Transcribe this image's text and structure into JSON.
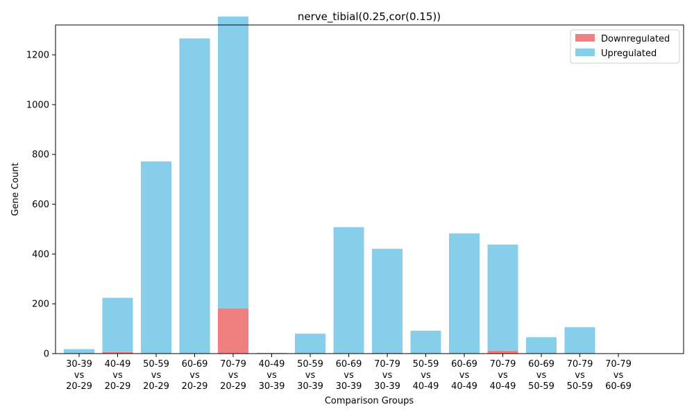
{
  "chart_data": {
    "type": "bar",
    "title": "nerve_tibial(0.25,cor(0.15))",
    "xlabel": "Comparison Groups",
    "ylabel": "Gene Count",
    "ylim": [
      0,
      1320
    ],
    "yticks": [
      0,
      200,
      400,
      600,
      800,
      1000,
      1200
    ],
    "grid": false,
    "legend_position": "upper right",
    "categories": [
      [
        "30-39",
        "vs",
        "20-29"
      ],
      [
        "40-49",
        "vs",
        "20-29"
      ],
      [
        "50-59",
        "vs",
        "20-29"
      ],
      [
        "60-69",
        "vs",
        "20-29"
      ],
      [
        "70-79",
        "vs",
        "20-29"
      ],
      [
        "40-49",
        "vs",
        "30-39"
      ],
      [
        "50-59",
        "vs",
        "30-39"
      ],
      [
        "60-69",
        "vs",
        "30-39"
      ],
      [
        "70-79",
        "vs",
        "30-39"
      ],
      [
        "50-59",
        "vs",
        "40-49"
      ],
      [
        "60-69",
        "vs",
        "40-49"
      ],
      [
        "70-79",
        "vs",
        "40-49"
      ],
      [
        "60-69",
        "vs",
        "50-59"
      ],
      [
        "70-79",
        "vs",
        "50-59"
      ],
      [
        "70-79",
        "vs",
        "60-69"
      ]
    ],
    "series": [
      {
        "name": "Downregulated",
        "color": "#f08080",
        "values": [
          0,
          6,
          0,
          0,
          182,
          0,
          0,
          0,
          3,
          0,
          0,
          12,
          0,
          0,
          0
        ]
      },
      {
        "name": "Upregulated",
        "color": "#87ceeb",
        "values": [
          18,
          218,
          772,
          1266,
          1172,
          3,
          80,
          508,
          418,
          92,
          483,
          426,
          66,
          106,
          1
        ]
      }
    ]
  }
}
